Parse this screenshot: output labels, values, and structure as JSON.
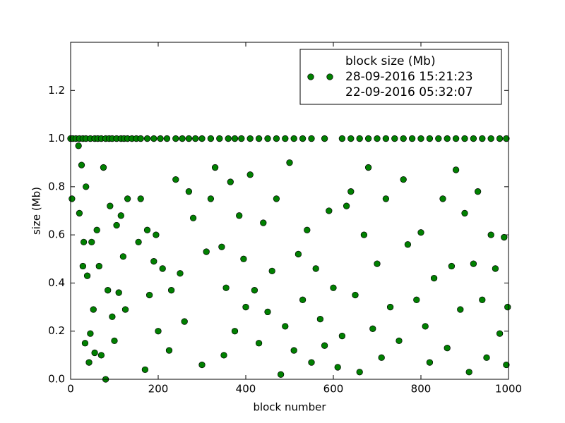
{
  "chart_data": {
    "type": "scatter",
    "xlabel": "block number",
    "ylabel": "size (Mb)",
    "xlim": [
      0,
      1000
    ],
    "xticks": [
      0,
      200,
      400,
      600,
      800,
      1000
    ],
    "ylim": [
      0,
      1.4
    ],
    "yticks": [
      {
        "value": 0,
        "label": "0.0"
      },
      0.2,
      0.4,
      0.6,
      0.8,
      {
        "value": 1,
        "label": "1.0"
      },
      1.2
    ],
    "grid": false,
    "legend": "upper right",
    "series": [
      {
        "name": [
          "block size (Mb)",
          "28-09-2016 15:21:23",
          "22-09-2016 05:32:07"
        ],
        "color": "#008000",
        "x": [
          0,
          5,
          12,
          20,
          28,
          35,
          45,
          55,
          62,
          70,
          80,
          88,
          95,
          105,
          115,
          122,
          130,
          140,
          150,
          160,
          175,
          190,
          205,
          220,
          240,
          255,
          270,
          285,
          300,
          320,
          340,
          360,
          375,
          390,
          410,
          430,
          450,
          470,
          490,
          510,
          530,
          550,
          580,
          620,
          640,
          660,
          680,
          700,
          720,
          740,
          760,
          780,
          800,
          820,
          840,
          860,
          880,
          900,
          920,
          940,
          960,
          980,
          995,
          3,
          18,
          20,
          25,
          28,
          30,
          33,
          35,
          38,
          42,
          45,
          48,
          52,
          55,
          60,
          65,
          70,
          75,
          80,
          85,
          90,
          95,
          100,
          105,
          110,
          115,
          120,
          125,
          130,
          155,
          160,
          170,
          175,
          180,
          190,
          195,
          200,
          210,
          225,
          230,
          240,
          250,
          260,
          270,
          280,
          300,
          310,
          320,
          330,
          345,
          350,
          355,
          365,
          375,
          385,
          395,
          400,
          410,
          420,
          430,
          440,
          450,
          460,
          470,
          480,
          490,
          500,
          510,
          520,
          530,
          540,
          550,
          560,
          570,
          580,
          590,
          600,
          610,
          620,
          630,
          640,
          650,
          660,
          670,
          680,
          690,
          700,
          710,
          720,
          730,
          750,
          760,
          770,
          790,
          800,
          810,
          820,
          830,
          850,
          860,
          870,
          880,
          890,
          900,
          910,
          920,
          930,
          940,
          950,
          960,
          970,
          980,
          990,
          995,
          998
        ],
        "y": [
          1,
          1,
          1,
          1,
          1,
          1,
          1,
          1,
          1,
          1,
          1,
          1,
          1,
          1,
          1,
          1,
          1,
          1,
          1,
          1,
          1,
          1,
          1,
          1,
          1,
          1,
          1,
          1,
          1,
          1,
          1,
          1,
          1,
          1,
          1,
          1,
          1,
          1,
          1,
          1,
          1,
          1,
          1,
          1,
          1,
          1,
          1,
          1,
          1,
          1,
          1,
          1,
          1,
          1,
          1,
          1,
          1,
          1,
          1,
          1,
          1,
          1,
          1,
          0.75,
          0.97,
          0.69,
          0.89,
          0.47,
          0.57,
          0.15,
          0.8,
          0.43,
          0.07,
          0.19,
          0.57,
          0.29,
          0.11,
          0.62,
          0.47,
          0.1,
          0.88,
          0,
          0.37,
          0.72,
          0.26,
          0.16,
          0.64,
          0.36,
          0.68,
          0.51,
          0.29,
          0.75,
          0.57,
          0.75,
          0.04,
          0.62,
          0.35,
          0.49,
          0.6,
          0.2,
          0.46,
          0.12,
          0.37,
          0.83,
          0.44,
          0.24,
          0.78,
          0.67,
          0.06,
          0.53,
          0.75,
          0.88,
          0.55,
          0.1,
          0.38,
          0.82,
          0.2,
          0.68,
          0.5,
          0.3,
          0.85,
          0.37,
          0.15,
          0.65,
          0.28,
          0.45,
          0.75,
          0.02,
          0.22,
          0.9,
          0.12,
          0.52,
          0.33,
          0.62,
          0.07,
          0.46,
          0.25,
          0.14,
          0.7,
          0.38,
          0.05,
          0.18,
          0.72,
          0.78,
          0.35,
          0.03,
          0.6,
          0.88,
          0.21,
          0.48,
          0.09,
          0.75,
          0.3,
          0.16,
          0.83,
          0.56,
          0.33,
          0.61,
          0.22,
          0.07,
          0.42,
          0.75,
          0.13,
          0.47,
          0.87,
          0.29,
          0.69,
          0.03,
          0.48,
          0.78,
          0.33,
          0.09,
          0.6,
          0.46,
          0.19,
          0.59,
          0.06,
          0.3
        ]
      }
    ]
  }
}
